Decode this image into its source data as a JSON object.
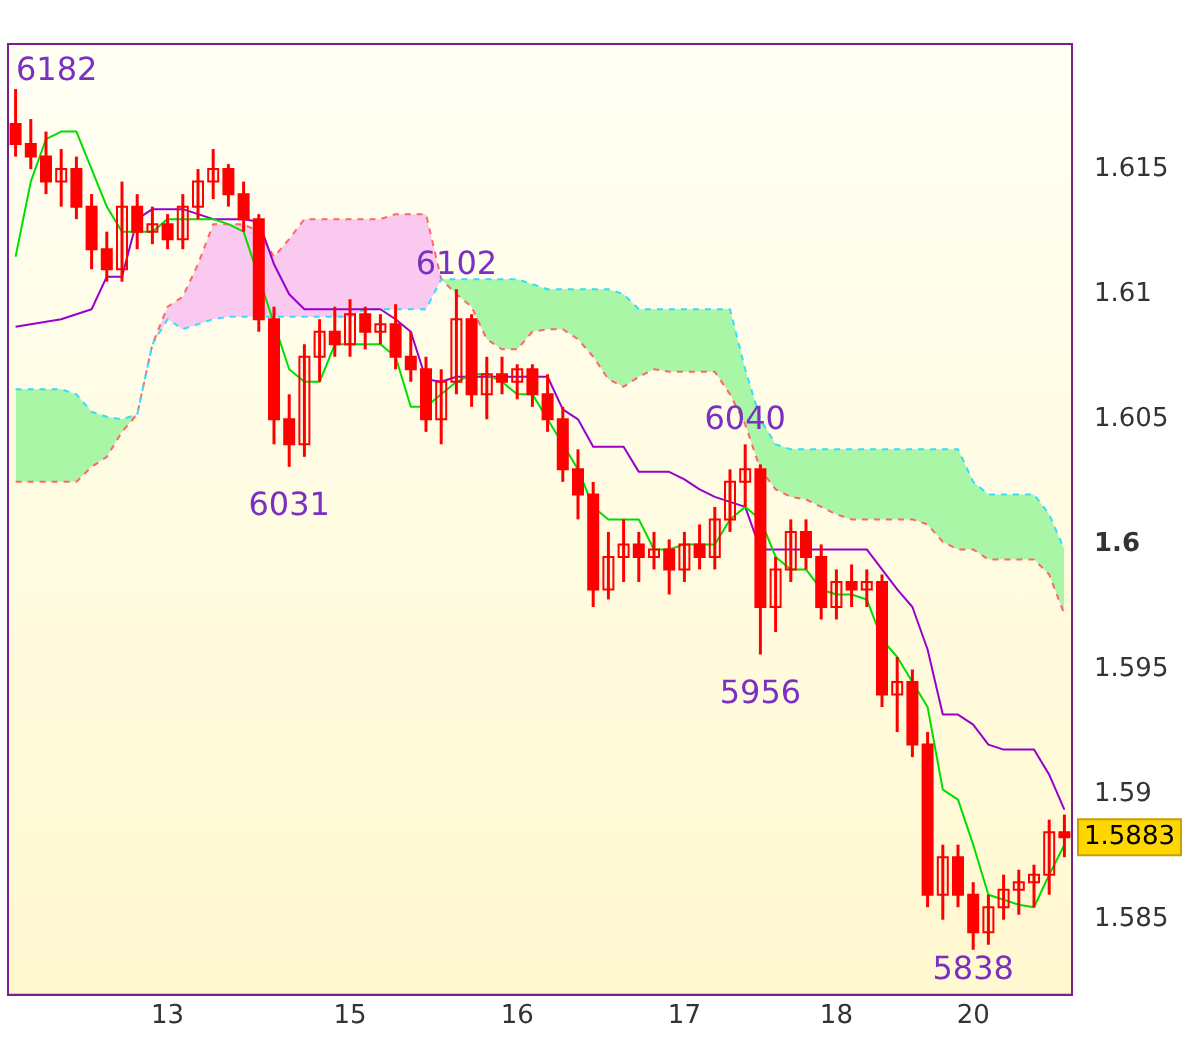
{
  "chart_data": {
    "type": "candlestick",
    "color": "#ff0000",
    "categories": [
      null,
      null,
      null,
      null,
      null,
      null,
      null,
      null,
      null,
      null,
      "13",
      null,
      null,
      null,
      null,
      null,
      null,
      null,
      null,
      null,
      null,
      null,
      "15",
      null,
      null,
      null,
      null,
      null,
      null,
      null,
      null,
      null,
      null,
      "16",
      null,
      null,
      null,
      null,
      null,
      null,
      null,
      null,
      null,
      null,
      "17",
      null,
      null,
      null,
      null,
      null,
      null,
      null,
      null,
      null,
      "18",
      null,
      null,
      null,
      null,
      null,
      null,
      null,
      null,
      "20",
      null,
      null,
      null,
      null,
      null,
      null
    ],
    "ohlc": [
      [
        1.6168,
        1.6182,
        1.6155,
        1.616
      ],
      [
        1.616,
        1.617,
        1.615,
        1.6155
      ],
      [
        1.6155,
        1.6165,
        1.614,
        1.6145
      ],
      [
        1.6145,
        1.6158,
        1.6135,
        1.615
      ],
      [
        1.615,
        1.6155,
        1.613,
        1.6135
      ],
      [
        1.6135,
        1.614,
        1.611,
        1.6118
      ],
      [
        1.6118,
        1.6125,
        1.6105,
        1.611
      ],
      [
        1.611,
        1.6145,
        1.6105,
        1.6135
      ],
      [
        1.6135,
        1.614,
        1.6118,
        1.6125
      ],
      [
        1.6125,
        1.6135,
        1.612,
        1.6128
      ],
      [
        1.6128,
        1.6132,
        1.6118,
        1.6122
      ],
      [
        1.6122,
        1.614,
        1.6118,
        1.6135
      ],
      [
        1.6135,
        1.615,
        1.613,
        1.6145
      ],
      [
        1.6145,
        1.6158,
        1.6138,
        1.615
      ],
      [
        1.615,
        1.6152,
        1.6135,
        1.614
      ],
      [
        1.614,
        1.6145,
        1.6125,
        1.613
      ],
      [
        1.613,
        1.6132,
        1.6085,
        1.609
      ],
      [
        1.609,
        1.6095,
        1.604,
        1.605
      ],
      [
        1.605,
        1.606,
        1.6031,
        1.604
      ],
      [
        1.604,
        1.608,
        1.6035,
        1.6075
      ],
      [
        1.6075,
        1.609,
        1.6065,
        1.6085
      ],
      [
        1.6085,
        1.6095,
        1.6075,
        1.608
      ],
      [
        1.608,
        1.6098,
        1.6075,
        1.6092
      ],
      [
        1.6092,
        1.6095,
        1.6078,
        1.6085
      ],
      [
        1.6085,
        1.6092,
        1.608,
        1.6088
      ],
      [
        1.6088,
        1.6096,
        1.607,
        1.6075
      ],
      [
        1.6075,
        1.6085,
        1.6065,
        1.607
      ],
      [
        1.607,
        1.6075,
        1.6045,
        1.605
      ],
      [
        1.605,
        1.607,
        1.604,
        1.6065
      ],
      [
        1.6065,
        1.6102,
        1.606,
        1.609
      ],
      [
        1.609,
        1.6092,
        1.6055,
        1.606
      ],
      [
        1.606,
        1.6075,
        1.605,
        1.6068
      ],
      [
        1.6068,
        1.6075,
        1.606,
        1.6065
      ],
      [
        1.6065,
        1.6072,
        1.6058,
        1.607
      ],
      [
        1.607,
        1.6072,
        1.6055,
        1.606
      ],
      [
        1.606,
        1.6068,
        1.6045,
        1.605
      ],
      [
        1.605,
        1.6055,
        1.6025,
        1.603
      ],
      [
        1.603,
        1.6038,
        1.601,
        1.602
      ],
      [
        1.602,
        1.6025,
        1.5975,
        1.5982
      ],
      [
        1.5982,
        1.6005,
        1.5978,
        1.5995
      ],
      [
        1.5995,
        1.601,
        1.5985,
        1.6
      ],
      [
        1.6,
        1.6005,
        1.5985,
        1.5995
      ],
      [
        1.5995,
        1.6005,
        1.599,
        1.5998
      ],
      [
        1.5998,
        1.6002,
        1.598,
        1.599
      ],
      [
        1.599,
        1.6005,
        1.5985,
        1.6
      ],
      [
        1.6,
        1.6008,
        1.599,
        1.5995
      ],
      [
        1.5995,
        1.6015,
        1.599,
        1.601
      ],
      [
        1.601,
        1.603,
        1.6005,
        1.6025
      ],
      [
        1.6025,
        1.604,
        1.6015,
        1.603
      ],
      [
        1.603,
        1.6032,
        1.5956,
        1.5975
      ],
      [
        1.5975,
        1.5995,
        1.5965,
        1.599
      ],
      [
        1.599,
        1.601,
        1.5985,
        1.6005
      ],
      [
        1.6005,
        1.601,
        1.599,
        1.5995
      ],
      [
        1.5995,
        1.6,
        1.597,
        1.5975
      ],
      [
        1.5975,
        1.599,
        1.597,
        1.5985
      ],
      [
        1.5985,
        1.5992,
        1.5975,
        1.5982
      ],
      [
        1.5982,
        1.599,
        1.5975,
        1.5985
      ],
      [
        1.5985,
        1.5988,
        1.5935,
        1.594
      ],
      [
        1.594,
        1.5955,
        1.5925,
        1.5945
      ],
      [
        1.5945,
        1.595,
        1.5915,
        1.592
      ],
      [
        1.592,
        1.5925,
        1.5855,
        1.586
      ],
      [
        1.586,
        1.588,
        1.585,
        1.5875
      ],
      [
        1.5875,
        1.588,
        1.5855,
        1.586
      ],
      [
        1.586,
        1.5865,
        1.5838,
        1.5845
      ],
      [
        1.5845,
        1.586,
        1.584,
        1.5855
      ],
      [
        1.5855,
        1.5868,
        1.585,
        1.5862
      ],
      [
        1.5862,
        1.587,
        1.5852,
        1.5865
      ],
      [
        1.5865,
        1.5872,
        1.5855,
        1.5868
      ],
      [
        1.5868,
        1.589,
        1.586,
        1.5885
      ],
      [
        1.5885,
        1.5892,
        1.5875,
        1.5883
      ]
    ],
    "series": [
      {
        "type": "line",
        "color": "#00dd00",
        "line_style": "solid",
        "values": [
          1.6115,
          1.6145,
          1.6162,
          1.6165,
          1.6165,
          1.615,
          1.6135,
          1.6125,
          1.6125,
          1.6125,
          1.613,
          1.613,
          1.613,
          1.613,
          1.6128,
          1.6125,
          null,
          null,
          1.607,
          1.6065,
          1.6065,
          1.608,
          1.608,
          1.608,
          1.608,
          1.6075,
          1.6055,
          1.6055,
          1.606,
          1.6065,
          1.6068,
          1.6068,
          1.6065,
          1.606,
          1.606,
          1.605,
          1.604,
          1.603,
          1.6015,
          1.601,
          1.601,
          1.601,
          1.5998,
          1.5998,
          1.6,
          1.6,
          1.6,
          1.601,
          1.6015,
          1.601,
          1.5995,
          1.599,
          1.599,
          1.5982,
          1.598,
          1.598,
          1.5978,
          1.5962,
          1.5955,
          1.5945,
          1.5935,
          1.5902,
          1.5898,
          1.588,
          1.586,
          1.5858,
          1.5856,
          1.5855,
          1.5868,
          1.588
        ]
      },
      {
        "type": "line",
        "color": "#9900cc",
        "line_style": "solid",
        "values": [
          1.6087,
          1.6088,
          1.6089,
          1.609,
          1.6092,
          1.6094,
          1.6107,
          1.6107,
          1.613,
          1.6134,
          1.6134,
          1.6134,
          1.6132,
          1.613,
          1.613,
          1.613,
          1.6129,
          1.6112,
          1.61,
          1.6094,
          1.6094,
          1.6094,
          1.6094,
          1.6094,
          1.6094,
          1.609,
          1.6085,
          1.6066,
          1.6065,
          1.6067,
          1.6067,
          1.6067,
          1.6067,
          1.6067,
          1.6067,
          1.6067,
          1.6054,
          1.605,
          1.6039,
          1.6039,
          1.6039,
          1.6029,
          1.6029,
          1.6029,
          1.6026,
          1.6022,
          1.6019,
          1.6017,
          1.6015,
          1.5998,
          1.5998,
          1.5998,
          1.5998,
          1.5998,
          1.5998,
          1.5998,
          1.5998,
          1.599,
          1.5982,
          1.5975,
          1.5958,
          1.5932,
          1.5932,
          1.5928,
          1.592,
          1.5918,
          1.5918,
          1.5918,
          1.5908,
          1.5894
        ]
      },
      {
        "type": "line",
        "color": "#33ddff",
        "line_style": "dashed",
        "values": [
          1.6062,
          1.6062,
          1.6062,
          1.6062,
          1.606,
          1.6053,
          1.6051,
          1.605,
          1.6052,
          1.608,
          1.609,
          1.6086,
          1.6088,
          1.609,
          1.6091,
          1.6091,
          1.6091,
          1.6091,
          1.6091,
          1.6091,
          1.6091,
          1.6091,
          1.6091,
          1.6094,
          1.6094,
          1.6094,
          1.6094,
          1.6094,
          1.6106,
          1.6106,
          1.6106,
          1.6106,
          1.6106,
          1.6106,
          1.6104,
          1.6102,
          1.6102,
          1.6102,
          1.6102,
          1.6102,
          1.61,
          1.6094,
          1.6094,
          1.6094,
          1.6094,
          1.6094,
          1.6094,
          1.6094,
          1.607,
          1.605,
          1.604,
          1.6038,
          1.6038,
          1.6038,
          1.6038,
          1.6038,
          1.6038,
          1.6038,
          1.6038,
          1.6038,
          1.6038,
          1.6038,
          1.6038,
          1.6025,
          1.602,
          1.602,
          1.602,
          1.602,
          1.6012,
          1.5998
        ]
      },
      {
        "type": "line",
        "color": "#ff6666",
        "line_style": "dashed",
        "values": [
          1.6025,
          1.6025,
          1.6025,
          1.6025,
          1.6025,
          1.6031,
          1.6035,
          1.6045,
          1.6052,
          1.608,
          1.6095,
          1.6099,
          1.6112,
          1.6128,
          1.6128,
          1.6128,
          1.6125,
          1.6115,
          1.6122,
          1.613,
          1.613,
          1.613,
          1.613,
          1.613,
          1.613,
          1.6132,
          1.6132,
          1.6132,
          1.6106,
          1.61,
          1.6095,
          1.6082,
          1.6078,
          1.6078,
          1.6085,
          1.6086,
          1.6086,
          1.6082,
          1.6075,
          1.6066,
          1.6063,
          1.6067,
          1.607,
          1.6069,
          1.6069,
          1.6069,
          1.6069,
          1.606,
          1.6048,
          1.603,
          1.6022,
          1.6019,
          1.6018,
          1.6015,
          1.6012,
          1.601,
          1.601,
          1.601,
          1.601,
          1.601,
          1.6008,
          1.6001,
          1.5998,
          1.5998,
          1.5994,
          1.5994,
          1.5994,
          1.5994,
          1.5988,
          1.5972
        ]
      }
    ],
    "ylim": [
      1.582,
      1.62
    ],
    "yticks": [
      1.585,
      1.59,
      1.595,
      1.6,
      1.605,
      1.61,
      1.615
    ],
    "grid": false,
    "legend": false,
    "annotations": [
      "6182",
      {
        "text": "6031",
        "y": 1.6031
      },
      {
        "text": "6102",
        "y": 1.6102
      },
      {
        "text": "6040",
        "y": 1.604
      },
      {
        "text": "5956",
        "y": 1.5956
      },
      {
        "text": "5838",
        "y": 1.5838
      },
      "1.5883"
    ]
  }
}
